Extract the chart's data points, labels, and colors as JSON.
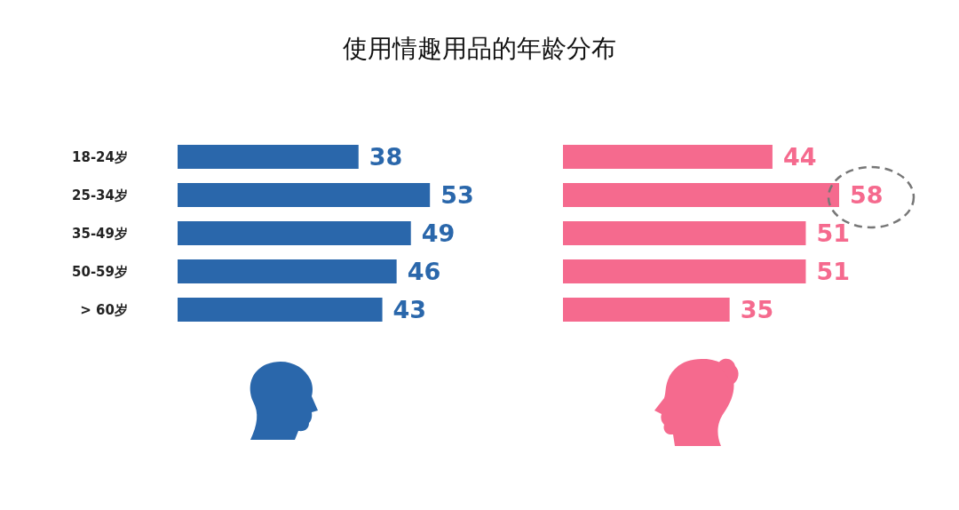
{
  "chart_data": [
    {
      "type": "bar",
      "orientation": "horizontal",
      "title": "使用情趣用品的年龄分布",
      "categories": [
        "18-24岁",
        "25-34岁",
        "35-49岁",
        "50-59岁",
        "> 60岁"
      ],
      "values": [
        38,
        53,
        49,
        46,
        43
      ],
      "color": "#2a67ab",
      "data_labels": true,
      "tick_labels": "y"
    },
    {
      "type": "bar",
      "orientation": "horizontal",
      "categories": [
        null,
        null,
        null,
        null,
        null
      ],
      "values": [
        44,
        58,
        51,
        51,
        35
      ],
      "color": "#f56a8e",
      "data_labels": true,
      "tick_labels": false
    }
  ]
}
